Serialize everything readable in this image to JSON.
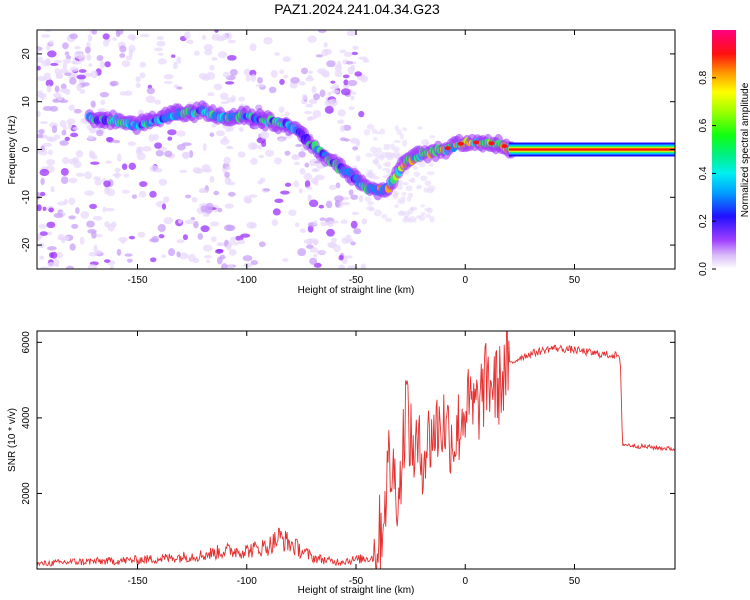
{
  "title": "PAZ1.2024.241.04.34.G23",
  "chart_data": [
    {
      "type": "heatmap",
      "xlabel": "Height of straight line (km)",
      "ylabel": "Frequency (Hz)",
      "xlim": [
        -196,
        96
      ],
      "ylim": [
        -25,
        25
      ],
      "xticks": [
        -150,
        -100,
        -50,
        0,
        50
      ],
      "yticks": [
        -20,
        -10,
        0,
        10,
        20
      ],
      "colorbar": {
        "label": "Normalized spectral amplitude",
        "range": [
          0,
          1
        ],
        "ticks": [
          0.0,
          0.2,
          0.4,
          0.6,
          0.8
        ]
      },
      "ridge": {
        "x": [
          -170,
          -160,
          -150,
          -140,
          -130,
          -120,
          -110,
          -100,
          -90,
          -80,
          -75,
          -70,
          -60,
          -50,
          -45,
          -40,
          -35,
          -30,
          -25,
          -20,
          -10,
          0,
          10,
          20,
          30,
          50,
          70,
          96
        ],
        "y": [
          6.5,
          6,
          5,
          6.5,
          7.5,
          8,
          6.5,
          7,
          6,
          5,
          3,
          1,
          -3,
          -6,
          -8,
          -8.5,
          -8,
          -4,
          -2,
          -1,
          0,
          1.5,
          1.5,
          0.5,
          0,
          0,
          0,
          0
        ]
      }
    },
    {
      "type": "line",
      "xlabel": "Height of straight line (km)",
      "ylabel": "SNR (10 * v/v)",
      "xlim": [
        -196,
        96
      ],
      "ylim": [
        0,
        6300
      ],
      "xticks": [
        -150,
        -100,
        -50,
        0,
        50
      ],
      "yticks": [
        2000,
        4000,
        6000
      ],
      "series": [
        {
          "color": "#e53030",
          "x": [
            -196,
            -180,
            -160,
            -140,
            -120,
            -110,
            -100,
            -90,
            -85,
            -80,
            -75,
            -70,
            -60,
            -50,
            -42,
            -38,
            -35,
            -30,
            -27,
            -25,
            -20,
            -15,
            -10,
            -5,
            0,
            5,
            10,
            15,
            20,
            25,
            30,
            40,
            50,
            60,
            70,
            71,
            72,
            80,
            90,
            96
          ],
          "y": [
            100,
            150,
            170,
            220,
            300,
            400,
            400,
            500,
            700,
            550,
            400,
            250,
            150,
            200,
            250,
            1200,
            2800,
            2000,
            4600,
            3300,
            3000,
            3600,
            3900,
            3400,
            4300,
            4200,
            5000,
            4800,
            5400,
            5600,
            5700,
            5850,
            5800,
            5700,
            5650,
            5400,
            3300,
            3250,
            3200,
            3180
          ]
        }
      ]
    }
  ]
}
